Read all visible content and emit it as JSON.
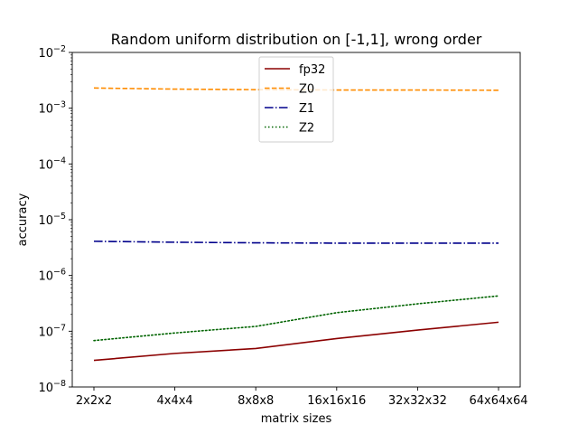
{
  "chart_data": {
    "type": "line",
    "title": "Random uniform distribution on [-1,1], wrong order",
    "xlabel": "matrix sizes",
    "ylabel": "accuracy",
    "categories": [
      "2x2x2",
      "4x4x4",
      "8x8x8",
      "16x16x16",
      "32x32x32",
      "64x64x64"
    ],
    "yscale": "log",
    "ylim": [
      1e-08,
      0.01
    ],
    "ytick_labels": [
      {
        "base": "10",
        "exp": "−8"
      },
      {
        "base": "10",
        "exp": "−7"
      },
      {
        "base": "10",
        "exp": "−6"
      },
      {
        "base": "10",
        "exp": "−5"
      },
      {
        "base": "10",
        "exp": "−4"
      },
      {
        "base": "10",
        "exp": "−3"
      },
      {
        "base": "10",
        "exp": "−2"
      }
    ],
    "grid": false,
    "legend_position": "top-center",
    "series": [
      {
        "name": "fp32",
        "color": "#8b0000",
        "style": "solid",
        "values": [
          3e-08,
          4e-08,
          4.9e-08,
          7.4e-08,
          1.05e-07,
          1.45e-07
        ]
      },
      {
        "name": "Z0",
        "color": "#ff8c00",
        "style": "dashed",
        "values": [
          0.0023,
          0.0022,
          0.00215,
          0.00212,
          0.00212,
          0.0021
        ]
      },
      {
        "name": "Z1",
        "color": "#00008b",
        "style": "dashdot",
        "values": [
          4.1e-06,
          3.95e-06,
          3.85e-06,
          3.8e-06,
          3.8e-06,
          3.8e-06
        ]
      },
      {
        "name": "Z2",
        "color": "#006400",
        "style": "dotted",
        "values": [
          6.8e-08,
          9.3e-08,
          1.22e-07,
          2.15e-07,
          3.1e-07,
          4.3e-07
        ]
      }
    ]
  }
}
